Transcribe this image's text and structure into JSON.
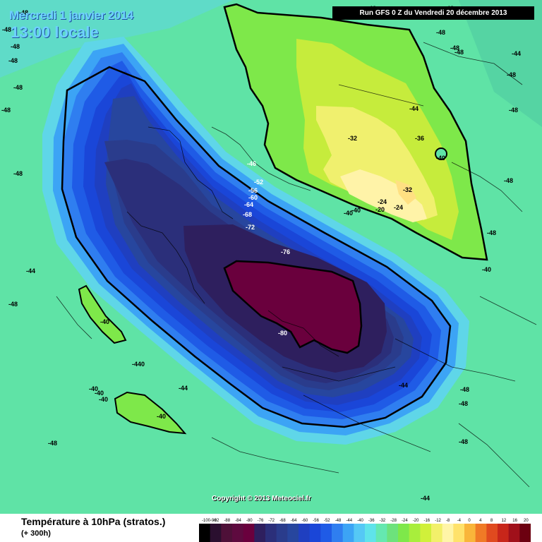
{
  "header": {
    "date_title": "Mercredi 1 janvier 2014",
    "local_time": "13:00 locale",
    "run_info": "Run GFS 0 Z du Vendredi 20 décembre 2013"
  },
  "copyright": "Copyright © 2013 Meteociel.fr",
  "footer": {
    "title": "Température à 10hPa (stratos.)",
    "subtitle": "(+ 300h)"
  },
  "legend": {
    "ticks": [
      "-100-96",
      "-92",
      "-88",
      "-84",
      "-80",
      "-76",
      "-72",
      "-68",
      "-64",
      "-60",
      "-56",
      "-52",
      "-48",
      "-44",
      "-40",
      "-36",
      "-32",
      "-28",
      "-24",
      "-20",
      "-16",
      "-12",
      "-8",
      "-4",
      "0",
      "4",
      "8",
      "12",
      "16",
      "20"
    ],
    "colors": [
      "#000000",
      "#2a0f2f",
      "#4e1038",
      "#5e0a3f",
      "#6a003d",
      "#2e1f5e",
      "#2b2f7a",
      "#2a3c8c",
      "#27469e",
      "#1f3fc0",
      "#1a46d8",
      "#1f5be6",
      "#2f7ef0",
      "#3ca4f5",
      "#55c8f5",
      "#5fe3ea",
      "#65e8b0",
      "#6de27c",
      "#7ee84a",
      "#a8ee3c",
      "#d0f03a",
      "#f2f06a",
      "#fff5a8",
      "#ffe26b",
      "#f9b53a",
      "#f07a26",
      "#e04a1f",
      "#c8261a",
      "#a0101a",
      "#6c0010"
    ]
  },
  "map_labels": [
    {
      "text": "-48",
      "tone": "dark"
    },
    {
      "text": "-48",
      "tone": "dark"
    },
    {
      "text": "-48",
      "tone": "dark"
    },
    {
      "text": "-48",
      "tone": "dark"
    },
    {
      "text": "-48",
      "tone": "dark"
    },
    {
      "text": "-48",
      "tone": "dark"
    },
    {
      "text": "-48",
      "tone": "dark"
    },
    {
      "text": "-44",
      "tone": "dark"
    },
    {
      "text": "-48",
      "tone": "dark"
    },
    {
      "text": "-40",
      "tone": "dark"
    },
    {
      "text": "-440",
      "tone": "dark"
    },
    {
      "text": "-44",
      "tone": "dark"
    },
    {
      "text": "-40",
      "tone": "dark"
    },
    {
      "text": "-40",
      "tone": "dark"
    },
    {
      "text": "-40",
      "tone": "dark"
    },
    {
      "text": "-40",
      "tone": "dark"
    },
    {
      "text": "-48",
      "tone": "dark"
    },
    {
      "text": "-44",
      "tone": "dark"
    },
    {
      "text": "-48",
      "tone": "dark"
    },
    {
      "text": "-48",
      "tone": "dark"
    },
    {
      "text": "-48",
      "tone": "dark"
    },
    {
      "text": "-44",
      "tone": "dark"
    },
    {
      "text": "-40",
      "tone": "dark"
    },
    {
      "text": "-48",
      "tone": "dark"
    },
    {
      "text": "-48",
      "tone": "dark"
    },
    {
      "text": "-48",
      "tone": "dark"
    },
    {
      "text": "-48",
      "tone": "dark"
    },
    {
      "text": "-44",
      "tone": "dark"
    },
    {
      "text": "-48",
      "tone": "dark"
    },
    {
      "text": "-48",
      "tone": "dark"
    },
    {
      "text": "-48",
      "tone": "dark"
    },
    {
      "text": "-48",
      "tone": "dark"
    },
    {
      "text": "-48",
      "tone": "dark"
    },
    {
      "text": "-44",
      "tone": "dark"
    },
    {
      "text": "-48",
      "tone": "dark"
    },
    {
      "text": "-32",
      "tone": "dark"
    },
    {
      "text": "-36",
      "tone": "dark"
    },
    {
      "text": "-40",
      "tone": "dark"
    },
    {
      "text": "-32",
      "tone": "dark"
    },
    {
      "text": "-24",
      "tone": "dark"
    },
    {
      "text": "-20",
      "tone": "dark"
    },
    {
      "text": "-24",
      "tone": "dark"
    },
    {
      "text": "-40",
      "tone": "dark"
    },
    {
      "text": "-40",
      "tone": "dark"
    },
    {
      "text": "-46",
      "tone": "light"
    },
    {
      "text": "-52",
      "tone": "light"
    },
    {
      "text": "-56",
      "tone": "light"
    },
    {
      "text": "-60",
      "tone": "light"
    },
    {
      "text": "-64",
      "tone": "light"
    },
    {
      "text": "-68",
      "tone": "light"
    },
    {
      "text": "-72",
      "tone": "light"
    },
    {
      "text": "-76",
      "tone": "light"
    },
    {
      "text": "-80",
      "tone": "light"
    }
  ]
}
